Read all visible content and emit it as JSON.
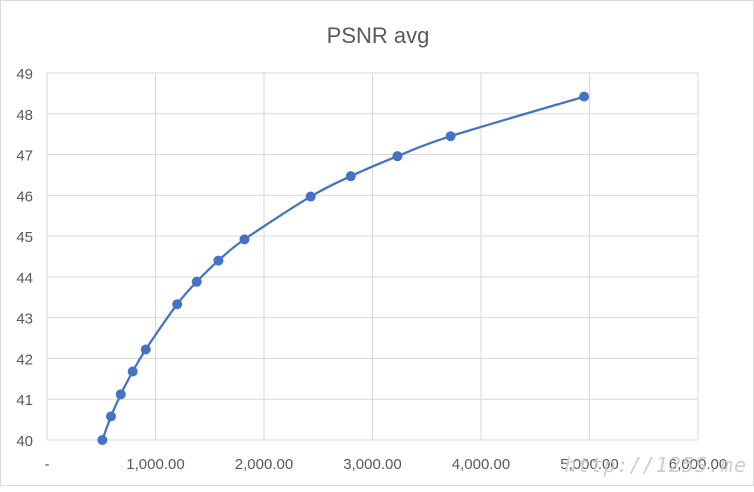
{
  "chart_data": {
    "type": "scatter",
    "title": "PSNR avg",
    "xlabel": "",
    "ylabel": "",
    "xlim": [
      0,
      6000
    ],
    "ylim": [
      40,
      49
    ],
    "x_tick_labels": [
      "-",
      "1,000.00",
      "2,000.00",
      "3,000.00",
      "4,000.00",
      "5,000.00",
      "6,000.00"
    ],
    "x_ticks": [
      0,
      1000,
      2000,
      3000,
      4000,
      5000,
      6000
    ],
    "y_ticks": [
      40,
      41,
      42,
      43,
      44,
      45,
      46,
      47,
      48,
      49
    ],
    "grid": true,
    "legend": "none",
    "markers": true,
    "line": "smooth",
    "series": [
      {
        "color": "#4472C4",
        "x": [
          510,
          590,
          680,
          790,
          910,
          1200,
          1380,
          1580,
          1820,
          2430,
          2800,
          3230,
          3720,
          4950
        ],
        "y": [
          40.0,
          40.58,
          41.12,
          41.68,
          42.22,
          43.33,
          43.88,
          44.4,
          44.92,
          45.97,
          46.47,
          46.96,
          47.45,
          48.42
        ]
      }
    ]
  },
  "watermark": "http://125S.me"
}
